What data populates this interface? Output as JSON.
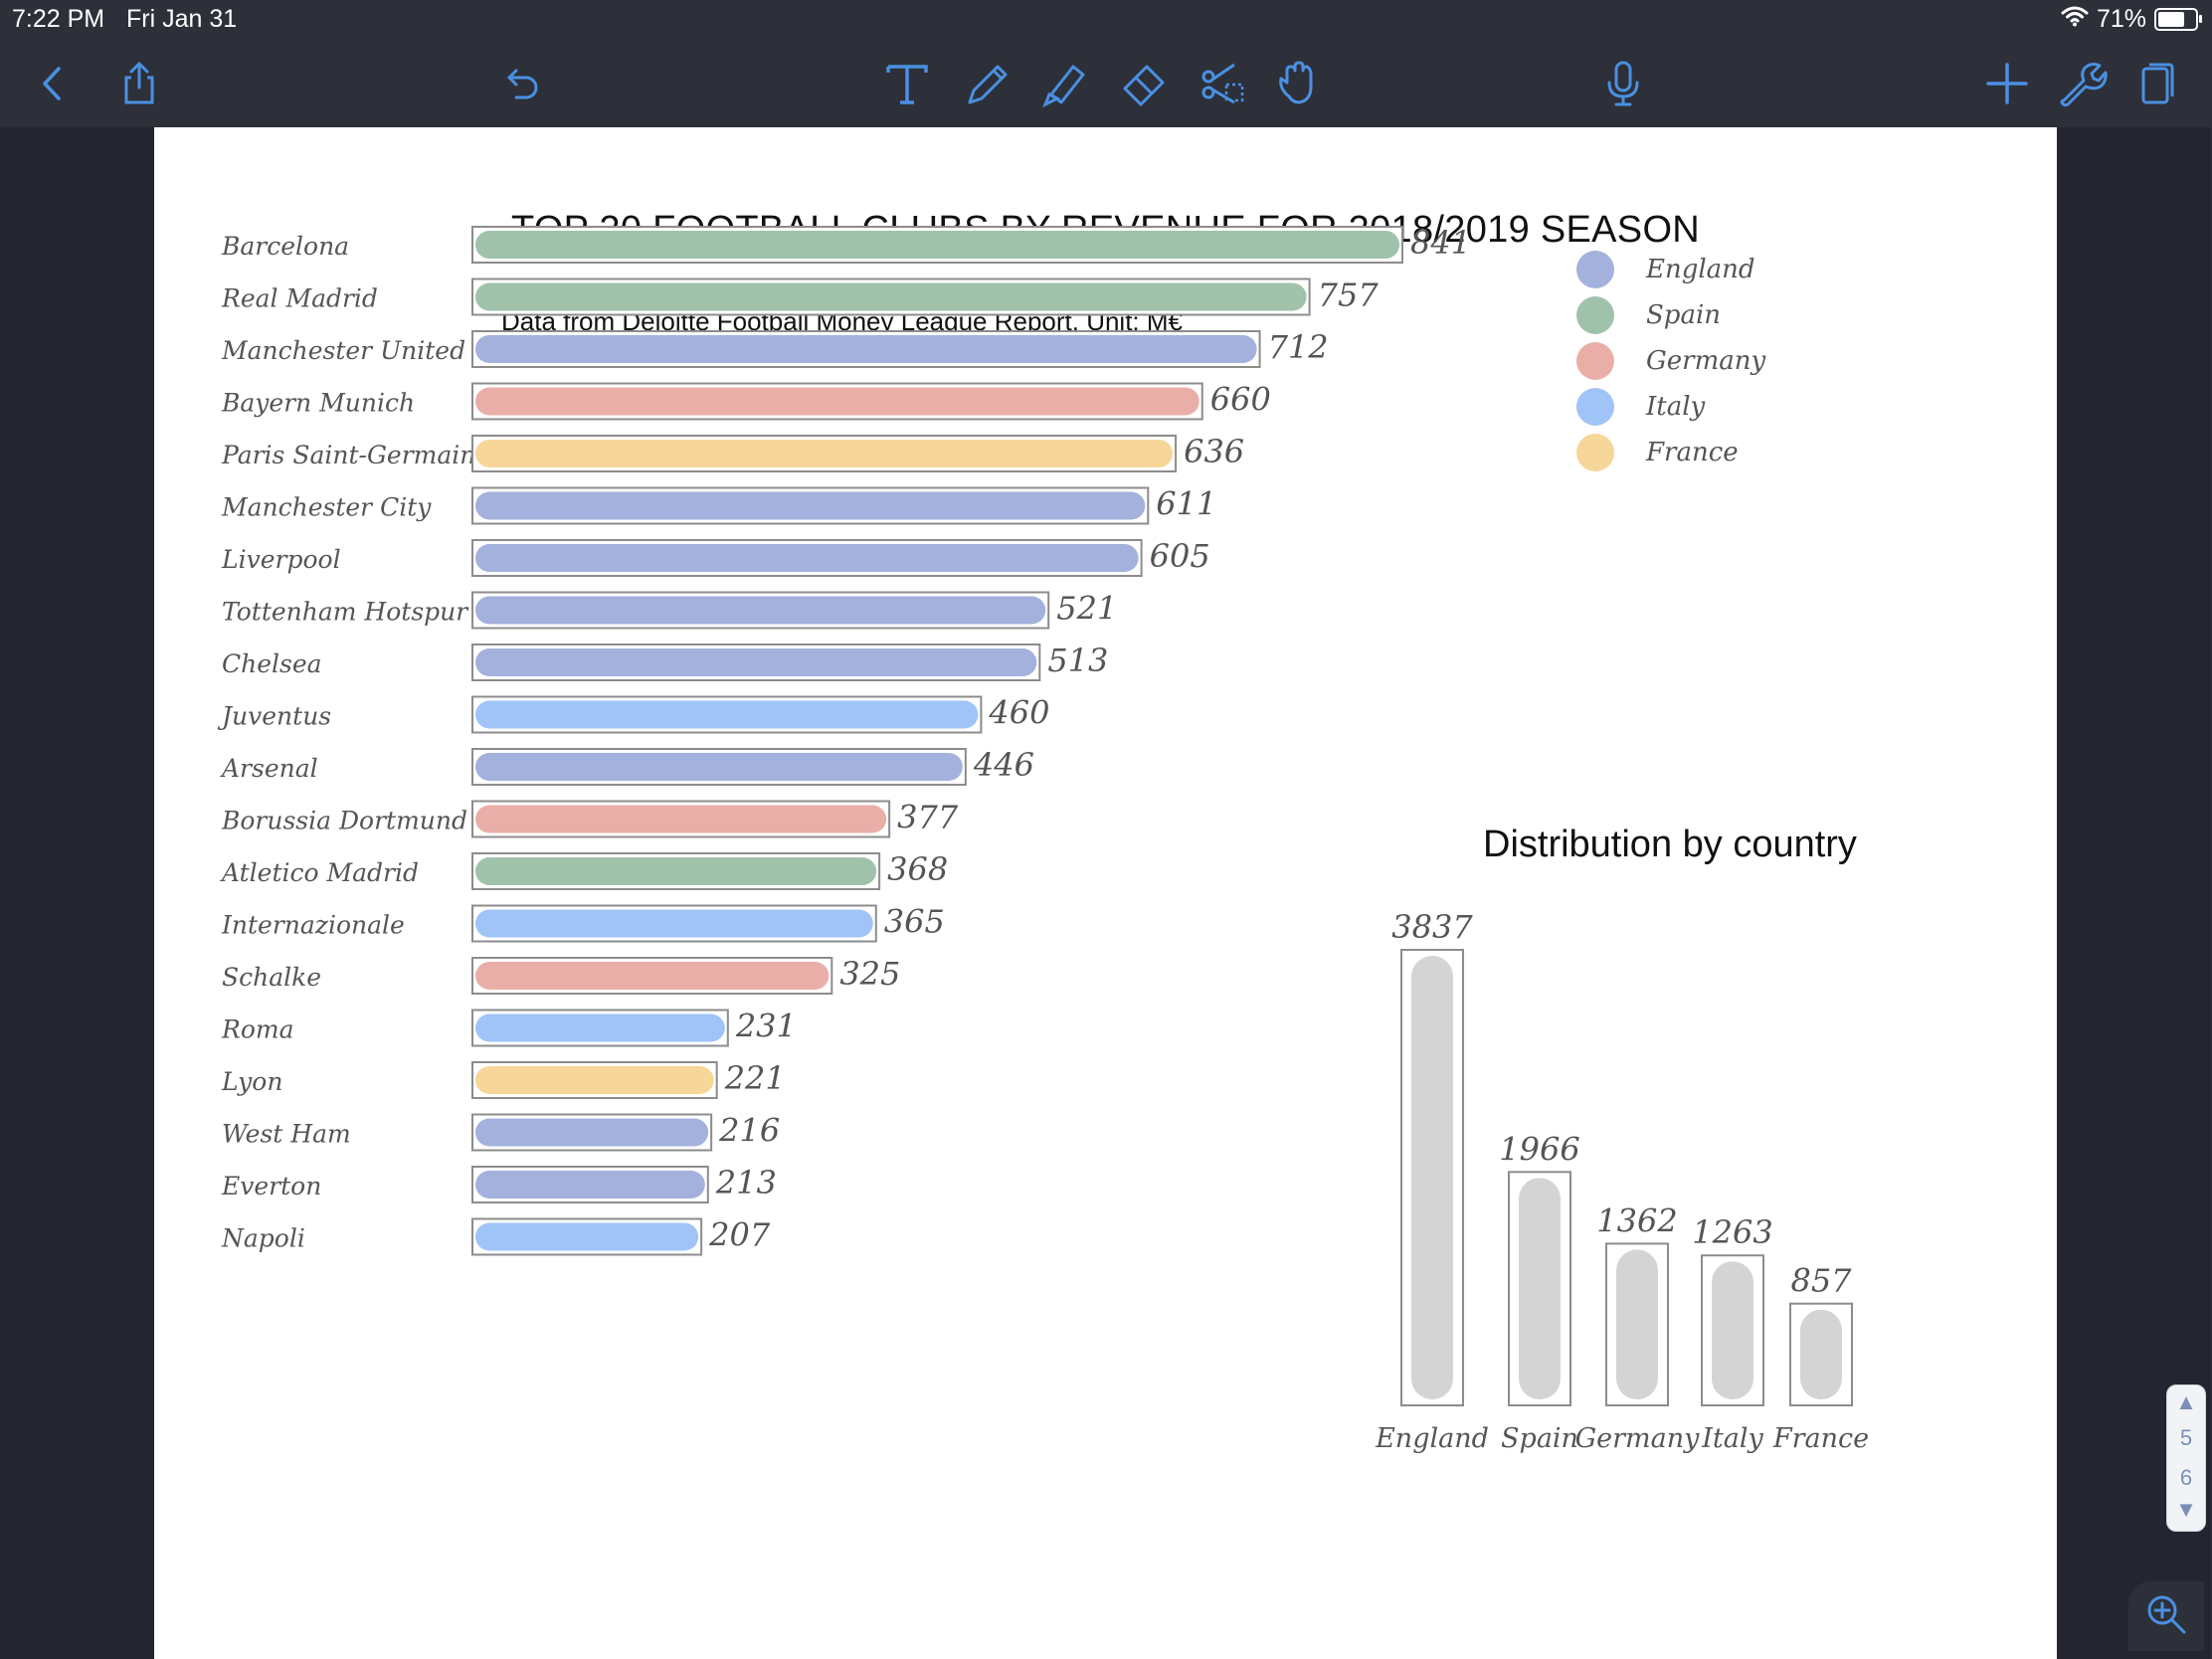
{
  "status": {
    "time": "7:22 PM",
    "date": "Fri Jan 31",
    "battery": "71%",
    "battery_level": 0.71
  },
  "toolbar": {
    "left": [
      "back-icon",
      "share-icon",
      "undo-icon"
    ],
    "tools": [
      "text-tool-icon",
      "pen-tool-icon",
      "highlighter-tool-icon",
      "eraser-tool-icon",
      "lasso-scissors-icon",
      "hand-tool-icon"
    ],
    "center": [
      "microphone-icon"
    ],
    "right": [
      "add-icon",
      "settings-wrench-icon",
      "pages-icon"
    ],
    "icon_color": "#4a90e2"
  },
  "page_nav": {
    "up": "▲",
    "current": "5",
    "next": "6",
    "down": "▼"
  },
  "chart_data": [
    {
      "type": "bar",
      "orientation": "horizontal",
      "title": "TOP 20 FOOTBALL CLUBS BY REVENUE FOR 2018/2019 SEASON",
      "subtitle": "Data from Deloitte Football Money League Report. Unit: M€",
      "categories": [
        "Barcelona",
        "Real Madrid",
        "Manchester United",
        "Bayern Munich",
        "Paris Saint-Germain",
        "Manchester City",
        "Liverpool",
        "Tottenham Hotspur",
        "Chelsea",
        "Juventus",
        "Arsenal",
        "Borussia Dortmund",
        "Atletico Madrid",
        "Internazionale",
        "Schalke",
        "Roma",
        "Lyon",
        "West Ham",
        "Everton",
        "Napoli"
      ],
      "values": [
        841,
        757,
        712,
        660,
        636,
        611,
        605,
        521,
        513,
        460,
        446,
        377,
        368,
        365,
        325,
        231,
        221,
        216,
        213,
        207
      ],
      "countries": [
        "Spain",
        "Spain",
        "England",
        "Germany",
        "France",
        "England",
        "England",
        "England",
        "England",
        "Italy",
        "England",
        "Germany",
        "Spain",
        "Italy",
        "Germany",
        "Italy",
        "France",
        "England",
        "England",
        "Italy"
      ],
      "legend": [
        {
          "name": "England",
          "color": "#a3b1dc"
        },
        {
          "name": "Spain",
          "color": "#a0c2aa"
        },
        {
          "name": "Germany",
          "color": "#eaaea8"
        },
        {
          "name": "Italy",
          "color": "#a0c4f8"
        },
        {
          "name": "France",
          "color": "#f7d699"
        }
      ],
      "legend_position": "top-right",
      "xlim": [
        0,
        841
      ]
    },
    {
      "type": "bar",
      "orientation": "vertical",
      "title": "Distribution by country",
      "categories": [
        "England",
        "Spain",
        "Germany",
        "Italy",
        "France"
      ],
      "values": [
        3837,
        1966,
        1362,
        1263,
        857
      ],
      "bar_color": "#d4d4d4",
      "ylim": [
        0,
        3837
      ]
    }
  ]
}
